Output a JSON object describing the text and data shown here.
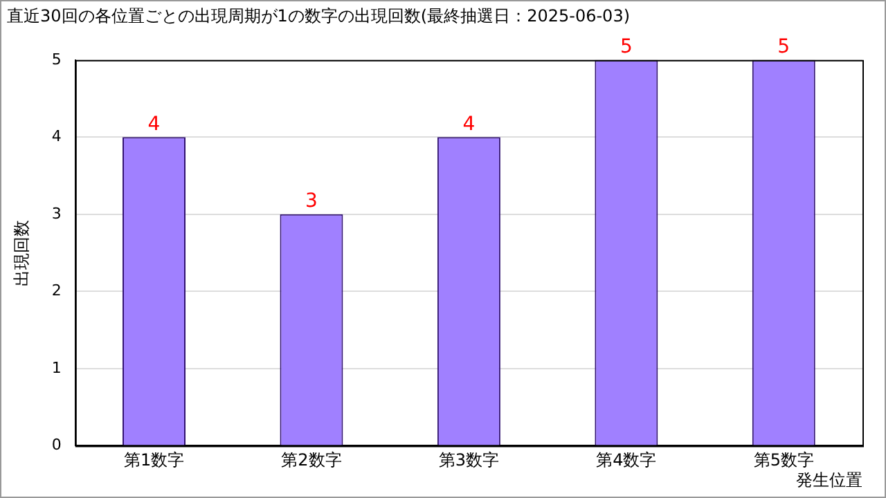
{
  "chart_data": {
    "type": "bar",
    "title": "直近30回の各位置ごとの出現周期が1の数字の出現回数(最終抽選日：2025-06-03)",
    "xlabel": "発生位置",
    "ylabel": "出現回数",
    "categories": [
      "第1数字",
      "第2数字",
      "第3数字",
      "第4数字",
      "第5数字"
    ],
    "values": [
      4,
      3,
      4,
      5,
      5
    ],
    "color": "#a080ff",
    "ylim": [
      0,
      5
    ],
    "yticks": [
      0,
      1,
      2,
      3,
      4,
      5
    ],
    "grid": "y",
    "data_labels": true,
    "legend": false
  }
}
